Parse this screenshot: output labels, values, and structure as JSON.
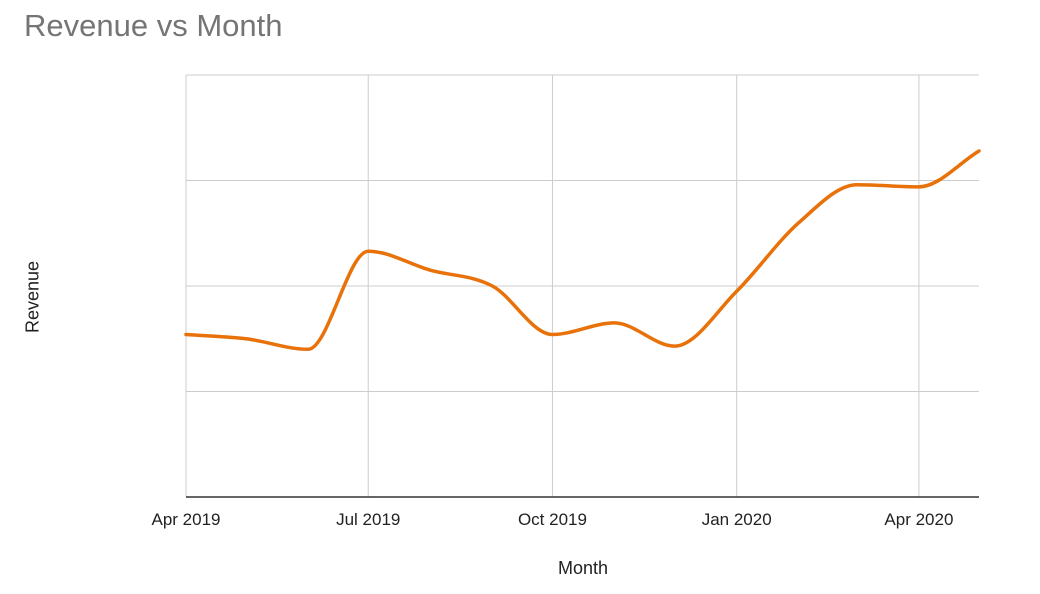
{
  "chart_data": {
    "type": "line",
    "title": "Revenue vs Month",
    "xlabel": "Month",
    "ylabel": "Revenue",
    "x_tick_labels": [
      "Apr 2019",
      "Jul 2019",
      "Oct 2019",
      "Jan 2020",
      "Apr 2020"
    ],
    "x_tick_dates": [
      "2019-04-01",
      "2019-07-01",
      "2019-10-01",
      "2020-01-01",
      "2020-04-01"
    ],
    "x_range": [
      "2019-04-01",
      "2020-05-01"
    ],
    "y_tick_labels_shown": false,
    "ylim": [
      0,
      4
    ],
    "y_gridlines": [
      0,
      1,
      2,
      3,
      4
    ],
    "grid": true,
    "legend": "none",
    "line_color": "#e8710a",
    "series": [
      {
        "x": [
          "2019-04-01",
          "2019-05-01",
          "2019-06-01",
          "2019-07-01",
          "2019-08-01",
          "2019-09-01",
          "2019-10-01",
          "2019-11-01",
          "2019-12-01",
          "2020-01-01",
          "2020-02-01",
          "2020-03-01",
          "2020-04-01",
          "2020-05-01"
        ],
        "values": [
          1.54,
          1.5,
          1.4,
          2.33,
          2.15,
          2.0,
          1.54,
          1.65,
          1.43,
          1.95,
          2.6,
          2.96,
          2.94,
          3.28
        ]
      }
    ]
  }
}
